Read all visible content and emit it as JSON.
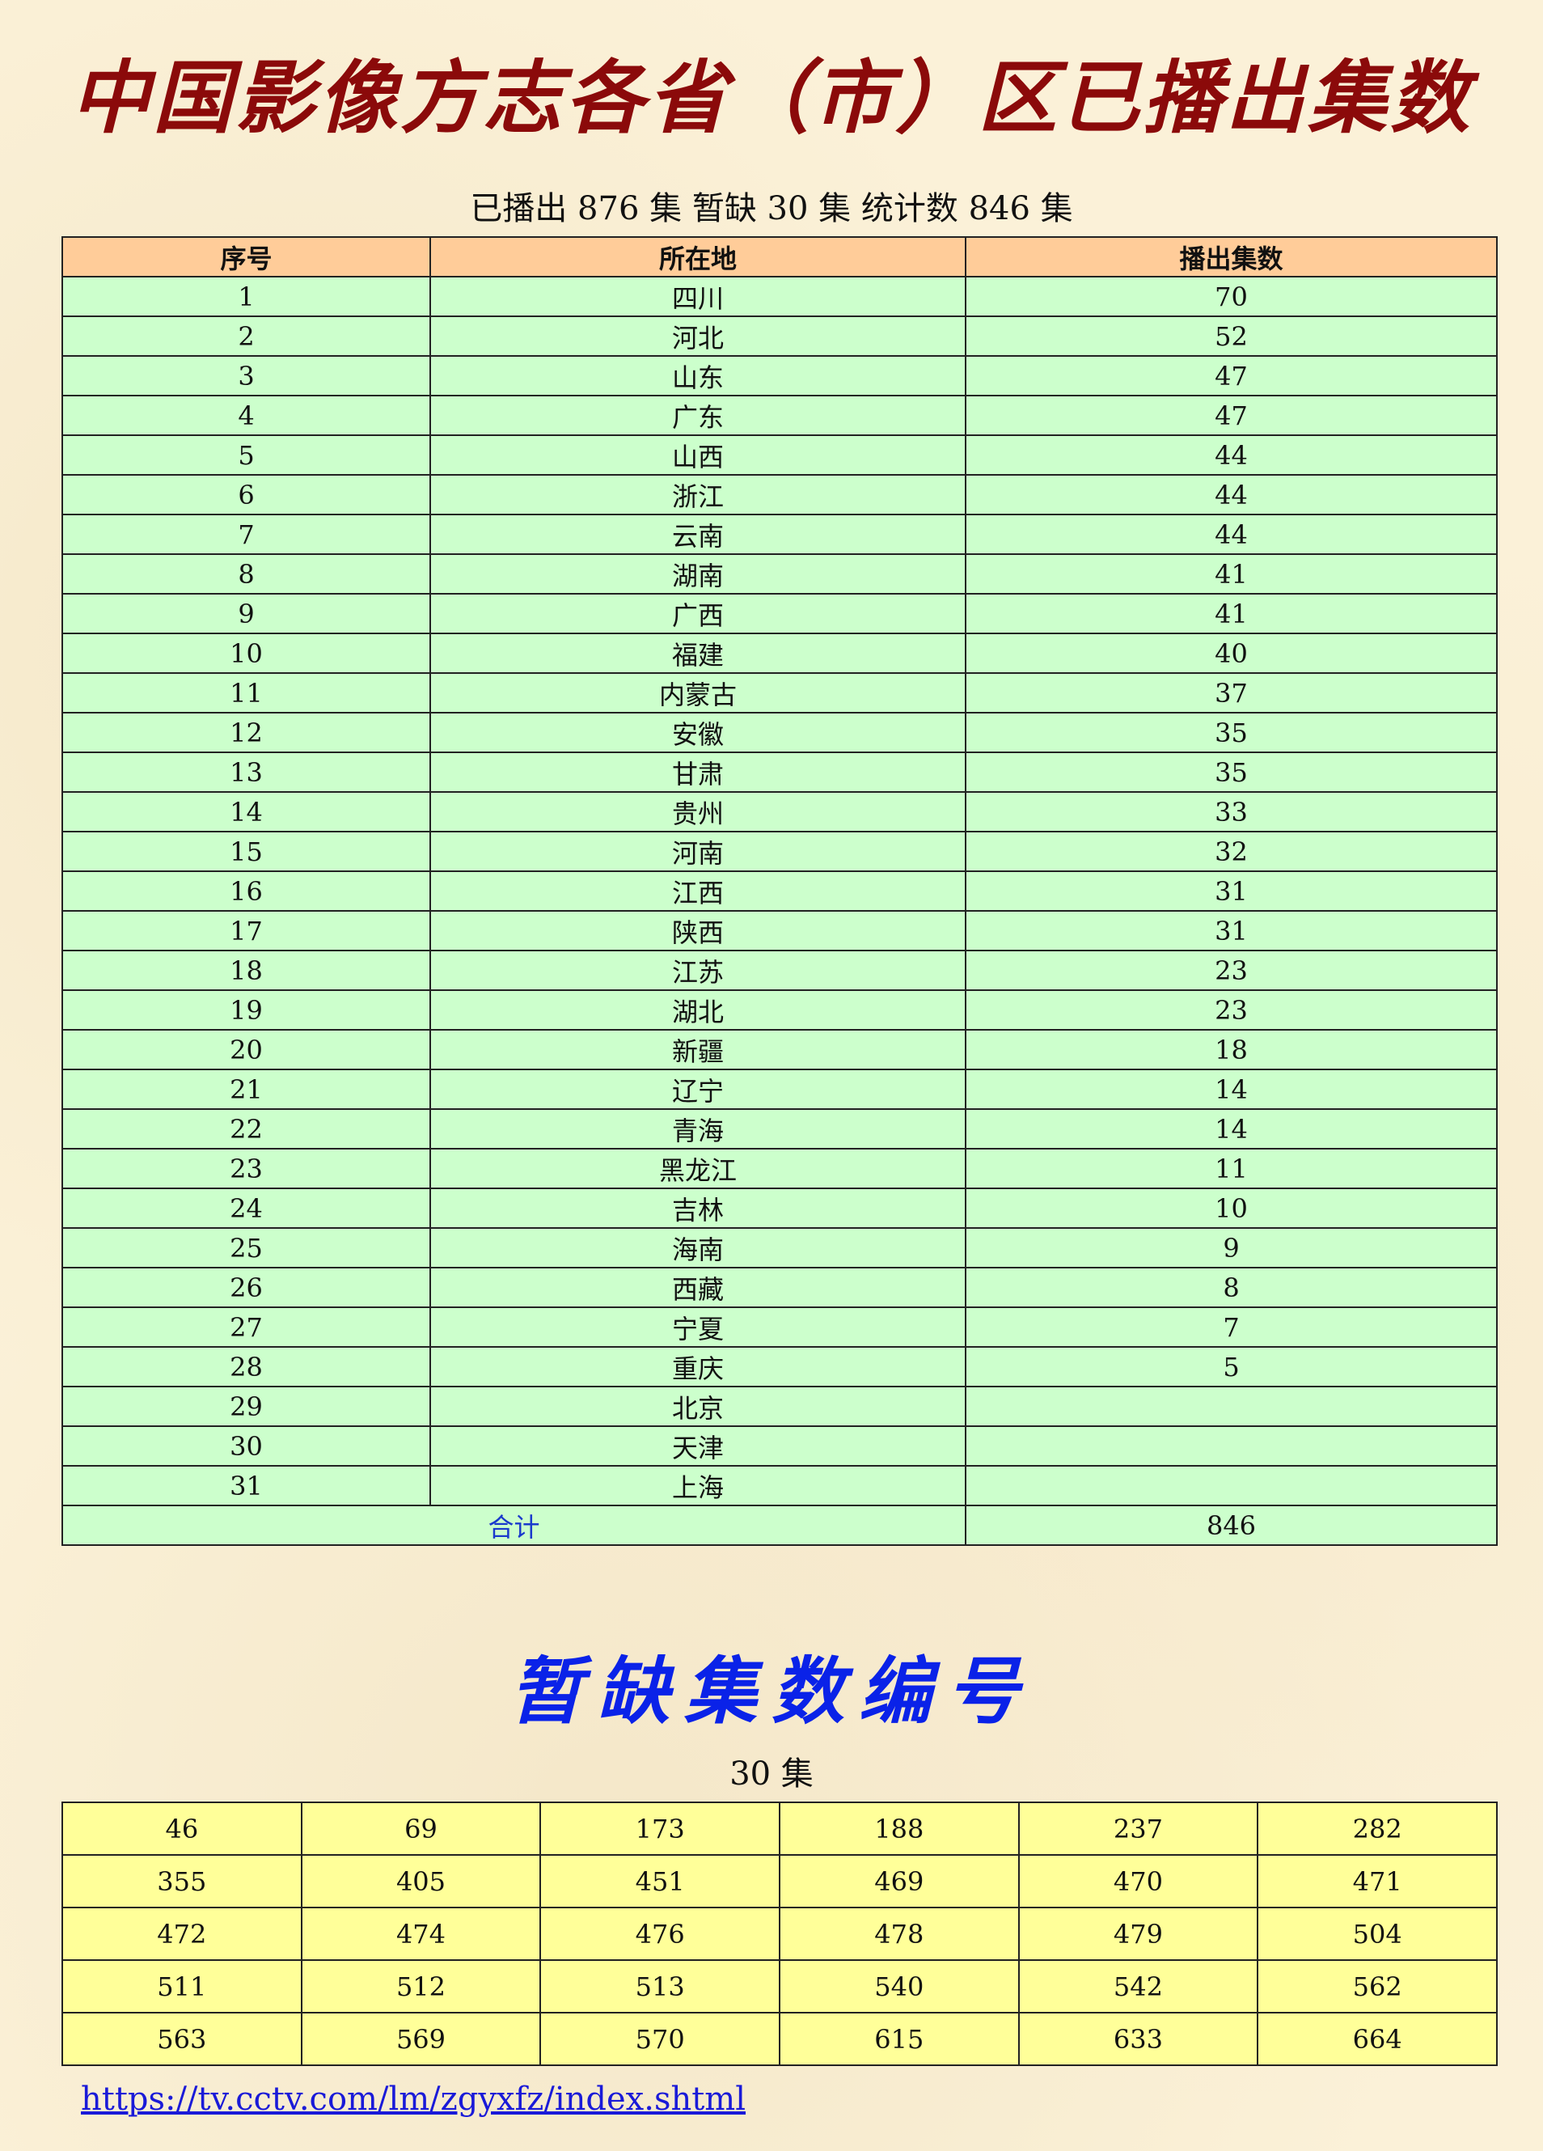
{
  "title": "中国影像方志各省（市）区已播出集数",
  "subtitle": "已播出 876 集  暂缺 30 集  统计数 846 集",
  "table": {
    "headers": [
      "序号",
      "所在地",
      "播出集数"
    ],
    "rows": [
      [
        "1",
        "四川",
        "70"
      ],
      [
        "2",
        "河北",
        "52"
      ],
      [
        "3",
        "山东",
        "47"
      ],
      [
        "4",
        "广东",
        "47"
      ],
      [
        "5",
        "山西",
        "44"
      ],
      [
        "6",
        "浙江",
        "44"
      ],
      [
        "7",
        "云南",
        "44"
      ],
      [
        "8",
        "湖南",
        "41"
      ],
      [
        "9",
        "广西",
        "41"
      ],
      [
        "10",
        "福建",
        "40"
      ],
      [
        "11",
        "内蒙古",
        "37"
      ],
      [
        "12",
        "安徽",
        "35"
      ],
      [
        "13",
        "甘肃",
        "35"
      ],
      [
        "14",
        "贵州",
        "33"
      ],
      [
        "15",
        "河南",
        "32"
      ],
      [
        "16",
        "江西",
        "31"
      ],
      [
        "17",
        "陕西",
        "31"
      ],
      [
        "18",
        "江苏",
        "23"
      ],
      [
        "19",
        "湖北",
        "23"
      ],
      [
        "20",
        "新疆",
        "18"
      ],
      [
        "21",
        "辽宁",
        "14"
      ],
      [
        "22",
        "青海",
        "14"
      ],
      [
        "23",
        "黑龙江",
        "11"
      ],
      [
        "24",
        "吉林",
        "10"
      ],
      [
        "25",
        "海南",
        "9"
      ],
      [
        "26",
        "西藏",
        "8"
      ],
      [
        "27",
        "宁夏",
        "7"
      ],
      [
        "28",
        "重庆",
        "5"
      ],
      [
        "29",
        "北京",
        ""
      ],
      [
        "30",
        "天津",
        ""
      ],
      [
        "31",
        "上海",
        ""
      ]
    ],
    "total_label": "合计",
    "total_value": "846"
  },
  "missing": {
    "title": "暂缺集数编号",
    "count": "30 集",
    "rows": [
      [
        "46",
        "69",
        "173",
        "188",
        "237",
        "282"
      ],
      [
        "355",
        "405",
        "451",
        "469",
        "470",
        "471"
      ],
      [
        "472",
        "474",
        "476",
        "478",
        "479",
        "504"
      ],
      [
        "511",
        "512",
        "513",
        "540",
        "542",
        "562"
      ],
      [
        "563",
        "569",
        "570",
        "615",
        "633",
        "664"
      ]
    ]
  },
  "link": "https://tv.cctv.com/lm/zgyxfz/index.shtml",
  "colors": {
    "title": "#8b0a0a",
    "header_bg": "#ffcc99",
    "row_bg": "#ccffcc",
    "missing_bg": "#ffff99",
    "title2": "#0a22e8"
  }
}
